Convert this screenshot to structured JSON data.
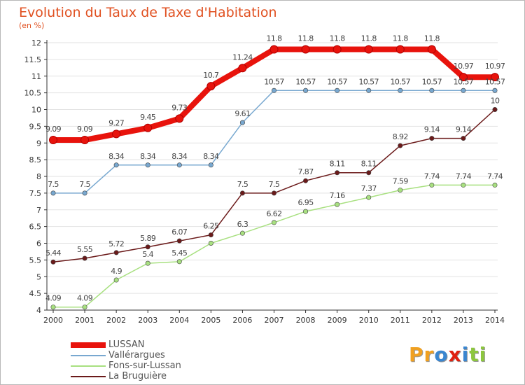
{
  "title": "Evolution du Taux de Taxe d'Habitation",
  "subtitle": "(en %)",
  "chart_data": {
    "type": "line",
    "title": "Evolution du Taux de Taxe d'Habitation",
    "ylabel": "(en %)",
    "xlabel": "",
    "ylim": [
      4,
      12
    ],
    "yticks": [
      "4",
      "4.5",
      "5",
      "5.5",
      "6",
      "6.5",
      "7",
      "7.5",
      "8",
      "8.5",
      "9",
      "9.5",
      "10",
      "10.5",
      "11",
      "11.5",
      "12"
    ],
    "x": [
      "2000",
      "2001",
      "2002",
      "2003",
      "2004",
      "2005",
      "2006",
      "2007",
      "2008",
      "2009",
      "2010",
      "2011",
      "2012",
      "2013",
      "2014"
    ],
    "grid": "horizontal",
    "legend_position": "bottom-left",
    "series": [
      {
        "name": "LUSSAN",
        "color": "#e8130c",
        "values": [
          9.09,
          9.09,
          9.27,
          9.45,
          9.73,
          10.7,
          11.24,
          11.8,
          11.8,
          11.8,
          11.8,
          11.8,
          11.8,
          10.97,
          10.97
        ],
        "labels": [
          "9.09",
          "9.09",
          "9.27",
          "9.45",
          "9.73",
          "10.7",
          "11.24",
          "11.8",
          "11.8",
          "11.8",
          "11.8",
          "11.8",
          "11.8",
          "10.97",
          "10.97"
        ]
      },
      {
        "name": "Vallérargues",
        "color": "#78a8d0",
        "values": [
          7.5,
          7.5,
          8.34,
          8.34,
          8.34,
          8.34,
          9.61,
          10.57,
          10.57,
          10.57,
          10.57,
          10.57,
          10.57,
          10.57,
          10.57
        ],
        "labels": [
          "7.5",
          "7.5",
          "8.34",
          "8.34",
          "8.34",
          "8.34",
          "9.61",
          "10.57",
          "10.57",
          "10.57",
          "10.57",
          "10.57",
          "10.57",
          "10.57",
          "10.57"
        ]
      },
      {
        "name": "Fons-sur-Lussan",
        "color": "#a8e080",
        "values": [
          4.09,
          4.09,
          4.9,
          5.4,
          5.45,
          6.0,
          6.3,
          6.62,
          6.95,
          7.16,
          7.37,
          7.59,
          7.74,
          7.74,
          7.74
        ],
        "labels": [
          "4.09",
          "4.09",
          "4.9",
          "5.4",
          "5.45",
          "",
          "6.3",
          "6.62",
          "6.95",
          "7.16",
          "7.37",
          "7.59",
          "7.74",
          "7.74",
          "7.74"
        ]
      },
      {
        "name": "La Bruguière",
        "color": "#6b1a1a",
        "values": [
          5.44,
          5.55,
          5.72,
          5.89,
          6.07,
          6.25,
          7.5,
          7.5,
          7.87,
          8.11,
          8.11,
          8.92,
          9.14,
          9.14,
          10.0
        ],
        "labels": [
          "5.44",
          "5.55",
          "5.72",
          "5.89",
          "6.07",
          "6.25",
          "7.5",
          "7.5",
          "7.87",
          "8.11",
          "8.11",
          "8.92",
          "9.14",
          "9.14",
          "10"
        ]
      }
    ]
  },
  "logo": {
    "letters": [
      "P",
      "r",
      "o",
      "x",
      "i",
      "t",
      "i"
    ],
    "colors": [
      "#f0a020",
      "#f0a020",
      "#3a86d0",
      "#e02010",
      "#3a86d0",
      "#8cc63e",
      "#8cc63e"
    ]
  }
}
